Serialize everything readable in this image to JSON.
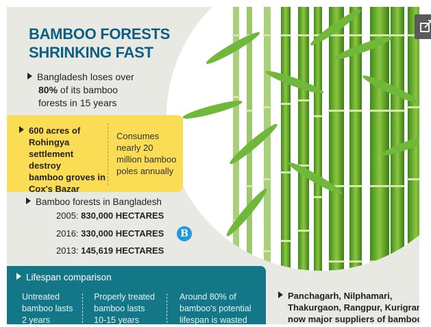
{
  "title_lines": [
    "BAMBOO FORESTS",
    "SHRINKING FAST"
  ],
  "intro": {
    "line1": "Bangladesh loses over",
    "highlight": "80%",
    "line2_rest": " of its bamboo",
    "line3": "forests in 15 years"
  },
  "rohingya": {
    "lines": [
      "600 acres of",
      "Rohingya",
      "settlement destroy",
      "bamboo groves in",
      "Cox's Bazar"
    ],
    "consumes": [
      "Consumes",
      "nearly 20",
      "million bamboo",
      "poles annually"
    ]
  },
  "forests": {
    "heading": "Bamboo forests in Bangladesh",
    "stats": [
      {
        "year": "2005:",
        "value": "830,000 HECTARES"
      },
      {
        "year": "2016:",
        "value": "330,000 HECTARES"
      },
      {
        "year": "2013:",
        "value": "145,619 HECTARES"
      }
    ]
  },
  "logo_letter": "B",
  "lifespan": {
    "heading": "Lifespan comparison",
    "columns": [
      [
        "Untreated",
        "bamboo lasts",
        "2 years"
      ],
      [
        "Properly treated",
        "bamboo lasts",
        "10-15 years"
      ],
      [
        "Around 80% of",
        "bamboo's potential",
        "lifespan is wasted"
      ]
    ]
  },
  "suppliers": [
    "Panchagarh, Nilphamari,",
    "Thakurgaon, Rangpur, Kurigram",
    "now major suppliers of bamboo"
  ],
  "colors": {
    "title": "#0c5f82",
    "yellow": "#fbdc55",
    "teal": "#137788",
    "background": "#e9e9e4",
    "bamboo": "#5aa12a"
  },
  "share_icon": "external-link-icon"
}
